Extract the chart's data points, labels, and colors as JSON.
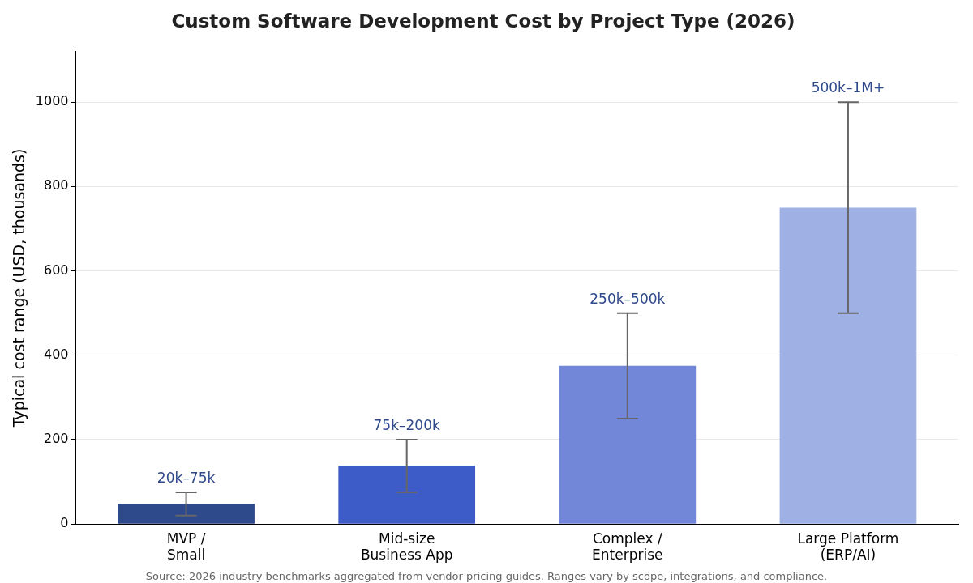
{
  "chart_data": {
    "type": "bar",
    "title": "Custom Software Development Cost by Project Type (2026)",
    "ylabel": "Typical cost range (USD, thousands)",
    "categories": [
      "MVP /\nSmall",
      "Mid-size\nBusiness App",
      "Complex /\nEnterprise",
      "Large Platform\n(ERP/AI)"
    ],
    "values": [
      48,
      138,
      375,
      750
    ],
    "colors": [
      "#2e4a8b",
      "#3d5cc8",
      "#7287d8",
      "#9eb0e4"
    ],
    "errors": [
      [
        20,
        75
      ],
      [
        75,
        200
      ],
      [
        250,
        500
      ],
      [
        500,
        1000
      ]
    ],
    "ylim": [
      0,
      1120
    ],
    "yticks": [
      0,
      200,
      400,
      600,
      800,
      1000
    ],
    "grid": "y",
    "legend": false,
    "annotations": [
      {
        "text": "20k–75k",
        "x": "MVP /\nSmall",
        "y": 75
      },
      {
        "text": "75k–200k",
        "x": "Mid-size\nBusiness App",
        "y": 200
      },
      {
        "text": "250k–500k",
        "x": "Complex /\nEnterprise",
        "y": 500
      },
      {
        "text": "500k–1M+",
        "x": "Large Platform\n(ERP/AI)",
        "y": 1000
      },
      "Source: 2026 industry benchmarks aggregated from vendor pricing guides. Ranges vary by scope, integrations, and compliance."
    ]
  }
}
